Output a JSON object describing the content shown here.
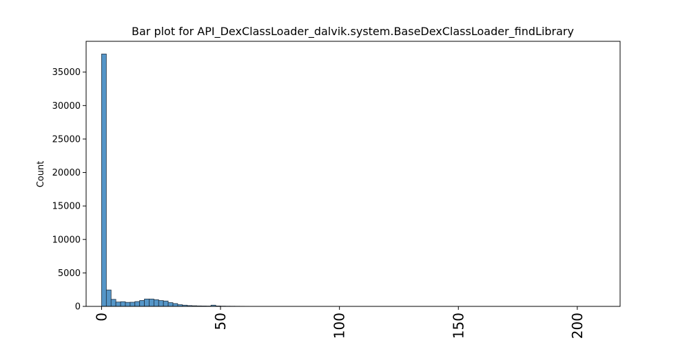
{
  "chart_data": {
    "type": "bar",
    "title": "Bar plot for API_DexClassLoader_dalvik.system.BaseDexClassLoader_findLibrary",
    "xlabel": "",
    "ylabel": "Count",
    "xlim": [
      -6.5,
      218
    ],
    "ylim": [
      0,
      39600
    ],
    "x_ticks": [
      0,
      50,
      100,
      150,
      200
    ],
    "y_ticks": [
      0,
      5000,
      10000,
      15000,
      20000,
      25000,
      30000,
      35000
    ],
    "bin_width": 2,
    "bar_color": "#5596c8",
    "edge_color": "#1f2f3f",
    "bins": [
      {
        "x": 0,
        "value": 37700
      },
      {
        "x": 2,
        "value": 2450
      },
      {
        "x": 4,
        "value": 1050
      },
      {
        "x": 6,
        "value": 650
      },
      {
        "x": 8,
        "value": 700
      },
      {
        "x": 10,
        "value": 600
      },
      {
        "x": 12,
        "value": 620
      },
      {
        "x": 14,
        "value": 720
      },
      {
        "x": 16,
        "value": 880
      },
      {
        "x": 18,
        "value": 1100
      },
      {
        "x": 20,
        "value": 1100
      },
      {
        "x": 22,
        "value": 1000
      },
      {
        "x": 24,
        "value": 870
      },
      {
        "x": 26,
        "value": 800
      },
      {
        "x": 28,
        "value": 560
      },
      {
        "x": 30,
        "value": 420
      },
      {
        "x": 32,
        "value": 250
      },
      {
        "x": 34,
        "value": 180
      },
      {
        "x": 36,
        "value": 120
      },
      {
        "x": 38,
        "value": 90
      },
      {
        "x": 40,
        "value": 70
      },
      {
        "x": 42,
        "value": 60
      },
      {
        "x": 44,
        "value": 50
      },
      {
        "x": 46,
        "value": 180
      },
      {
        "x": 48,
        "value": 60
      },
      {
        "x": 50,
        "value": 40
      },
      {
        "x": 52,
        "value": 30
      },
      {
        "x": 54,
        "value": 25
      },
      {
        "x": 56,
        "value": 20
      },
      {
        "x": 58,
        "value": 15
      },
      {
        "x": 60,
        "value": 12
      },
      {
        "x": 62,
        "value": 8
      }
    ]
  }
}
